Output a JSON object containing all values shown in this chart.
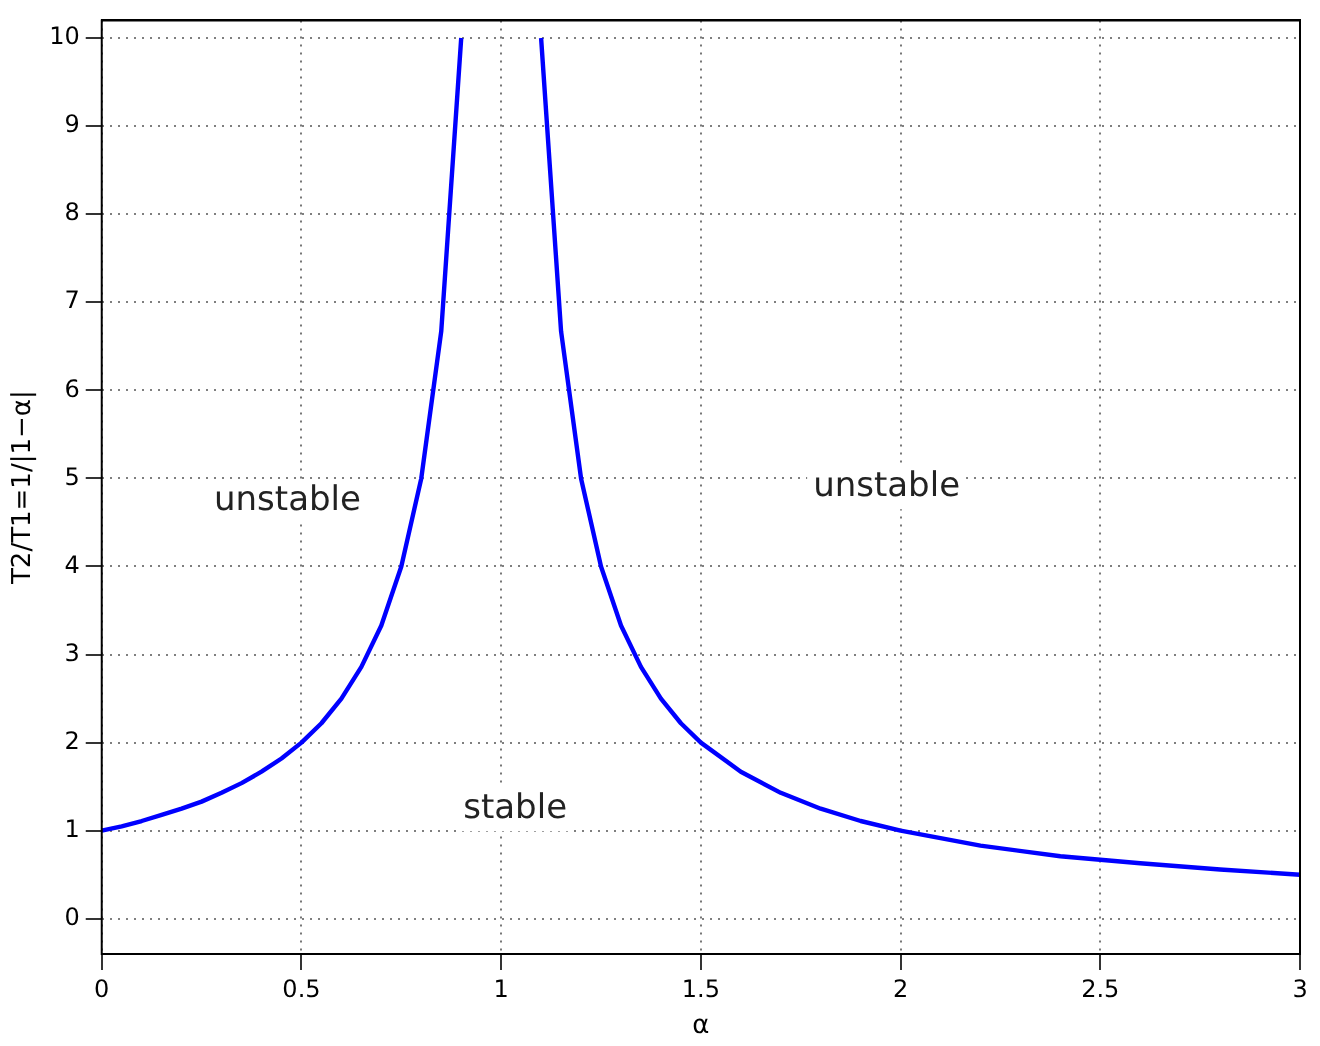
{
  "chart_data": {
    "type": "line",
    "xlabel": "α",
    "ylabel": "T2/T1=1/|1−α|",
    "x": [
      0,
      0.05,
      0.1,
      0.15,
      0.2,
      0.25,
      0.3,
      0.35,
      0.4,
      0.45,
      0.5,
      0.55,
      0.6,
      0.65,
      0.7,
      0.75,
      0.8,
      0.85,
      0.9,
      1.0,
      1.1,
      1.15,
      1.2,
      1.25,
      1.3,
      1.35,
      1.4,
      1.45,
      1.5,
      1.6,
      1.7,
      1.8,
      1.9,
      2,
      2.2,
      2.4,
      2.6,
      2.8,
      3
    ],
    "series": [
      {
        "color": "#0000ff",
        "values": [
          1,
          1.05,
          1.11,
          1.18,
          1.25,
          1.33,
          1.43,
          1.54,
          1.67,
          1.82,
          2,
          2.22,
          2.5,
          2.86,
          3.33,
          4,
          5,
          6.67,
          10,
          null,
          10,
          6.67,
          5,
          4,
          3.33,
          2.86,
          2.5,
          2.22,
          2,
          1.67,
          1.43,
          1.25,
          1.11,
          1,
          0.83,
          0.71,
          0.63,
          0.56,
          0.5
        ]
      }
    ],
    "xlim": [
      0,
      3
    ],
    "xticks": [
      0,
      0.5,
      1,
      1.5,
      2,
      2.5,
      3
    ],
    "ylim": [
      -0.4,
      10.2
    ],
    "yticks": [
      0,
      1,
      2,
      3,
      4,
      5,
      6,
      7,
      8,
      9,
      10
    ],
    "grid": true,
    "line_style": "solid",
    "marker": "none",
    "legend": false,
    "annotations": [
      "unstable",
      "unstable",
      "stable"
    ]
  }
}
